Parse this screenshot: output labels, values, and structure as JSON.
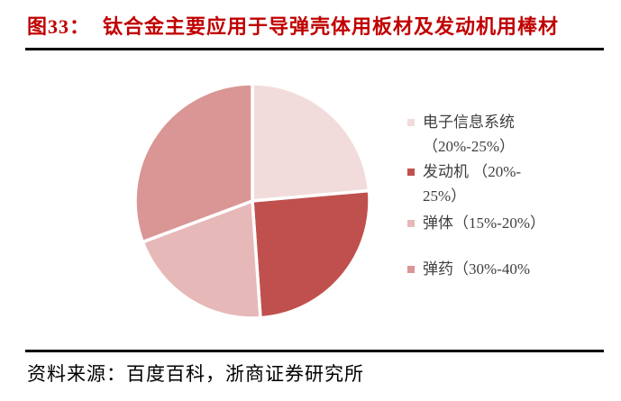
{
  "header": {
    "figure_label": "图33：",
    "title": "钛合金主要应用于导弹壳体用板材及发动机用棒材"
  },
  "chart_data": {
    "type": "pie",
    "title": "钛合金主要应用于导弹壳体用板材及发动机用棒材",
    "legend_position": "right",
    "start_angle_deg": 0,
    "clockwise": true,
    "slice_gap_color": "#ffffff",
    "segments": [
      {
        "name": "电子信息系统",
        "range": "20%-25%",
        "share_pct_drawn": 23.6,
        "color": "#F2DCDB"
      },
      {
        "name": "发动机",
        "range": "20%-25%",
        "share_pct_drawn": 25.3,
        "color": "#C0504D"
      },
      {
        "name": "弹体",
        "range": "15%-20%",
        "share_pct_drawn": 20.4,
        "color": "#E6B9B8"
      },
      {
        "name": "弹药",
        "range": "30%-40%",
        "share_pct_drawn": 30.7,
        "color": "#D99694"
      }
    ]
  },
  "legend": {
    "items": [
      {
        "text": "电子信息系统\n（20%-25%）"
      },
      {
        "text": "发动机 （20%-\n25%）"
      },
      {
        "text": "弹体（15%-20%）"
      },
      {
        "text": "弹药（30%-40%"
      }
    ]
  },
  "footer": {
    "source": "资料来源：百度百科，浙商证券研究所"
  },
  "colors": {
    "title": "#c00000",
    "rule": "#000000",
    "legend_text": "#3f3f3f",
    "background": "#ffffff"
  }
}
